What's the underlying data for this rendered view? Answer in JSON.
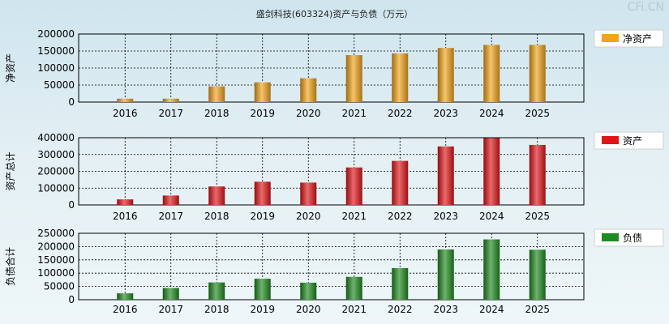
{
  "title": "盛剑科技(603324)资产与负债（万元）",
  "watermark": "CFi.CN",
  "chart_data": [
    {
      "type": "bar",
      "ylabel": "净资产",
      "legend": "净资产",
      "legend_position": "right",
      "color": "#f2a41c",
      "categories": [
        "2016",
        "2017",
        "2018",
        "2019",
        "2020",
        "2021",
        "2022",
        "2023",
        "2024",
        "2025"
      ],
      "values": [
        10000,
        10000,
        46000,
        58000,
        70000,
        138000,
        143000,
        159000,
        168000,
        168000
      ],
      "ylim": [
        0,
        200000
      ],
      "yticks": [
        "0",
        "50000",
        "100000",
        "150000",
        "200000"
      ],
      "grid": true
    },
    {
      "type": "bar",
      "ylabel": "资产总计",
      "legend": "资产",
      "legend_position": "right",
      "color": "#e0161a",
      "categories": [
        "2016",
        "2017",
        "2018",
        "2019",
        "2020",
        "2021",
        "2022",
        "2023",
        "2024",
        "2025"
      ],
      "values": [
        33000,
        56000,
        110000,
        138000,
        133000,
        223000,
        262000,
        348000,
        398000,
        357000
      ],
      "ylim": [
        0,
        400000
      ],
      "yticks": [
        "0",
        "100000",
        "200000",
        "300000",
        "400000"
      ],
      "grid": true
    },
    {
      "type": "bar",
      "ylabel": "负债合计",
      "legend": "负债",
      "legend_position": "right",
      "color": "#1f8a1f",
      "categories": [
        "2016",
        "2017",
        "2018",
        "2019",
        "2020",
        "2021",
        "2022",
        "2023",
        "2024",
        "2025"
      ],
      "values": [
        24000,
        44000,
        65000,
        79000,
        64000,
        86000,
        119000,
        189000,
        227000,
        188000
      ],
      "ylim": [
        0,
        250000
      ],
      "yticks": [
        "0",
        "50000",
        "100000",
        "150000",
        "200000",
        "250000"
      ],
      "grid": true
    }
  ]
}
